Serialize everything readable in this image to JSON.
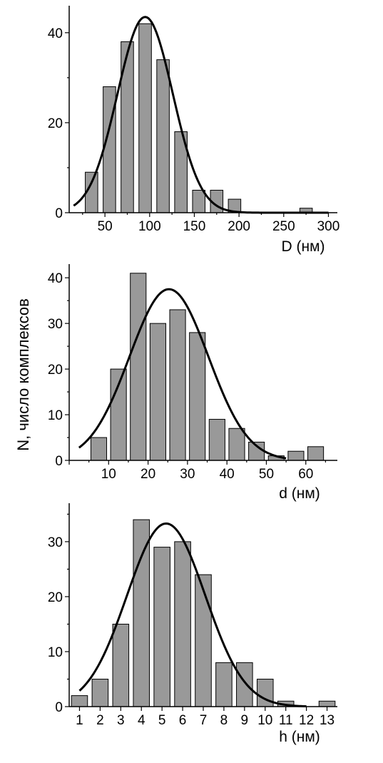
{
  "y_axis_label": "N,  число комплексов",
  "colors": {
    "bar_fill": "#999999",
    "bar_stroke": "#000000",
    "curve": "#000000"
  },
  "chart_data": [
    {
      "type": "bar",
      "xlabel": "D (нм)",
      "ylabel": "",
      "xlim": [
        10,
        310
      ],
      "ylim": [
        0,
        46
      ],
      "x_ticks": [
        50,
        100,
        150,
        200,
        250,
        300
      ],
      "y_ticks": [
        0,
        20,
        40
      ],
      "bar_width": 14,
      "x": [
        35,
        55,
        75,
        95,
        115,
        135,
        155,
        175,
        195,
        215,
        235,
        255,
        275,
        295
      ],
      "values": [
        9,
        28,
        38,
        42,
        34,
        18,
        5,
        5,
        3,
        0,
        0,
        0,
        1,
        0
      ],
      "fit_curve": {
        "type": "gaussian",
        "amplitude": 43.5,
        "center": 95,
        "sigma": 31,
        "x_range": [
          15,
          300
        ]
      }
    },
    {
      "type": "bar",
      "xlabel": "d (нм)",
      "ylabel": "",
      "xlim": [
        0,
        68
      ],
      "ylim": [
        0,
        43
      ],
      "x_ticks": [
        10,
        20,
        30,
        40,
        50,
        60
      ],
      "y_ticks": [
        0,
        10,
        20,
        30,
        40
      ],
      "bar_width": 4,
      "x": [
        7.5,
        12.5,
        17.5,
        22.5,
        27.5,
        32.5,
        37.5,
        42.5,
        47.5,
        52.5,
        57.5,
        62.5,
        67.5
      ],
      "values": [
        5,
        20,
        41,
        30,
        33,
        28,
        9,
        7,
        4,
        1,
        2,
        3,
        0
      ],
      "fit_curve": {
        "type": "gaussian",
        "amplitude": 37.5,
        "center": 25.3,
        "sigma": 10,
        "x_range": [
          2.5,
          55
        ]
      }
    },
    {
      "type": "bar",
      "xlabel": "h (нм)",
      "ylabel": "",
      "xlim": [
        0.5,
        13.5
      ],
      "ylim": [
        0,
        37
      ],
      "x_ticks": [
        1,
        2,
        3,
        4,
        5,
        6,
        7,
        8,
        9,
        10,
        11,
        12,
        13
      ],
      "y_ticks": [
        0,
        10,
        20,
        30
      ],
      "bar_width": 0.78,
      "x": [
        1,
        2,
        3,
        4,
        5,
        6,
        7,
        8,
        9,
        10,
        11,
        12,
        13
      ],
      "values": [
        2,
        5,
        15,
        34,
        29,
        30,
        24,
        8,
        8,
        5,
        1,
        0,
        1
      ],
      "fit_curve": {
        "type": "gaussian",
        "amplitude": 33.3,
        "center": 5.2,
        "sigma": 1.9,
        "x_range": [
          1,
          12
        ]
      }
    }
  ]
}
